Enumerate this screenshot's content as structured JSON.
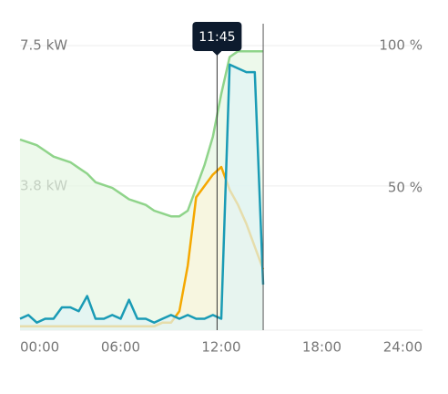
{
  "chart_data": {
    "type": "line",
    "x": [
      0,
      0.5,
      1,
      1.5,
      2,
      2.5,
      3,
      3.5,
      4,
      4.5,
      5,
      5.5,
      6,
      6.5,
      7,
      7.5,
      8,
      8.5,
      9,
      9.5,
      10,
      10.5,
      11,
      11.5,
      12,
      12.5,
      13,
      13.5,
      14,
      14.5
    ],
    "series": [
      {
        "color": "#8fd48a",
        "fill": "#e6f7e3",
        "axis": "y2",
        "values": [
          67,
          66,
          65,
          63,
          61,
          60,
          59,
          57,
          55,
          52,
          51,
          50,
          48,
          46,
          45,
          44,
          42,
          41,
          40,
          40,
          42,
          50,
          58,
          68,
          83,
          96,
          98,
          98,
          98,
          98
        ]
      },
      {
        "color": "#f5a800",
        "fill": "#fbf5dc",
        "values": [
          0.1,
          0.1,
          0.1,
          0.1,
          0.1,
          0.1,
          0.1,
          0.1,
          0.1,
          0.1,
          0.1,
          0.1,
          0.1,
          0.1,
          0.1,
          0.1,
          0.1,
          0.2,
          0.2,
          0.5,
          1.7,
          3.5,
          3.8,
          4.1,
          4.3,
          3.7,
          3.3,
          2.8,
          2.2,
          1.6
        ]
      },
      {
        "color": "#1a9bb5",
        "fill": "#dff4f5",
        "values": [
          0.3,
          0.4,
          0.2,
          0.3,
          0.3,
          0.6,
          0.6,
          0.5,
          0.9,
          0.3,
          0.3,
          0.4,
          0.3,
          0.8,
          0.3,
          0.3,
          0.2,
          0.3,
          0.4,
          0.3,
          0.4,
          0.3,
          0.3,
          0.4,
          0.3,
          7.0,
          6.9,
          6.8,
          6.8,
          1.2
        ]
      }
    ],
    "xlim": [
      0,
      24
    ],
    "xticks": [
      {
        "value": 0,
        "label": "00:00"
      },
      {
        "value": 6,
        "label": "06:00"
      },
      {
        "value": 12,
        "label": "12:00"
      },
      {
        "value": 18,
        "label": "18:00"
      },
      {
        "value": 24,
        "label": "24:00"
      }
    ],
    "ylim": [
      0,
      7.5
    ],
    "yticks": [
      {
        "value": 7.5,
        "label": "7.5 kW"
      },
      {
        "value": 3.8,
        "label": "3.8 kW"
      }
    ],
    "y2lim": [
      0,
      100
    ],
    "y2ticks": [
      {
        "value": 100,
        "label": "100 %"
      },
      {
        "value": 50,
        "label": "50 %"
      }
    ],
    "grid": true,
    "cursor": {
      "x": 11.75,
      "label": "11:45"
    }
  }
}
